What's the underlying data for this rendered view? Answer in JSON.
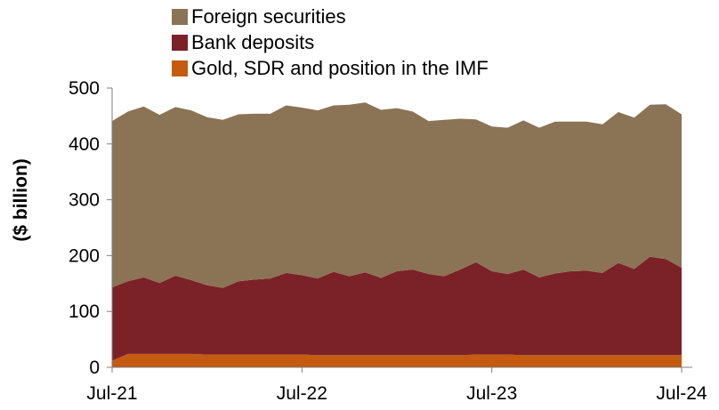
{
  "chart_data": {
    "type": "area",
    "stacked": true,
    "title": "",
    "xlabel": "",
    "ylabel": "($ billion)",
    "ylim": [
      0,
      500
    ],
    "yticks": [
      0,
      100,
      200,
      300,
      400,
      500
    ],
    "x_tick_labels": [
      "Jul-21",
      "Jul-22",
      "Jul-23",
      "Jul-24"
    ],
    "grid": false,
    "legend_placement": "top",
    "x": [
      "2021-07",
      "2021-08",
      "2021-09",
      "2021-10",
      "2021-11",
      "2021-12",
      "2022-01",
      "2022-02",
      "2022-03",
      "2022-04",
      "2022-05",
      "2022-06",
      "2022-07",
      "2022-08",
      "2022-09",
      "2022-10",
      "2022-11",
      "2022-12",
      "2023-01",
      "2023-02",
      "2023-03",
      "2023-04",
      "2023-05",
      "2023-06",
      "2023-07",
      "2023-08",
      "2023-09",
      "2023-10",
      "2023-11",
      "2023-12",
      "2024-01",
      "2024-02",
      "2024-03",
      "2024-04",
      "2024-05",
      "2024-06",
      "2024-07"
    ],
    "series": [
      {
        "name": "Gold, SDR and position in the IMF",
        "color": "#c55a11",
        "values": [
          12,
          24,
          24,
          24,
          24,
          24,
          23,
          23,
          23,
          23,
          23,
          23,
          23,
          22,
          22,
          22,
          22,
          22,
          22,
          22,
          22,
          22,
          22,
          23,
          23,
          23,
          22,
          22,
          22,
          22,
          22,
          22,
          22,
          22,
          22,
          22,
          22
        ]
      },
      {
        "name": "Bank deposits",
        "color": "#7b2128",
        "values": [
          131,
          130,
          137,
          127,
          140,
          132,
          124,
          119,
          131,
          134,
          136,
          146,
          142,
          137,
          149,
          141,
          148,
          138,
          150,
          153,
          145,
          141,
          153,
          165,
          149,
          144,
          153,
          139,
          146,
          150,
          151,
          147,
          165,
          154,
          176,
          172,
          156
        ]
      },
      {
        "name": "Foreign securities",
        "color": "#8b7355",
        "values": [
          298,
          304,
          306,
          301,
          302,
          304,
          301,
          301,
          299,
          297,
          295,
          300,
          300,
          301,
          298,
          307,
          304,
          301,
          292,
          283,
          274,
          280,
          270,
          256,
          259,
          262,
          267,
          268,
          272,
          268,
          267,
          266,
          270,
          271,
          272,
          277,
          275
        ]
      }
    ]
  },
  "legend": {
    "items": [
      {
        "label": "Foreign securities",
        "color": "#8b7355"
      },
      {
        "label": "Bank deposits",
        "color": "#7b2128"
      },
      {
        "label": "Gold, SDR and position in the IMF",
        "color": "#c55a11"
      }
    ]
  }
}
